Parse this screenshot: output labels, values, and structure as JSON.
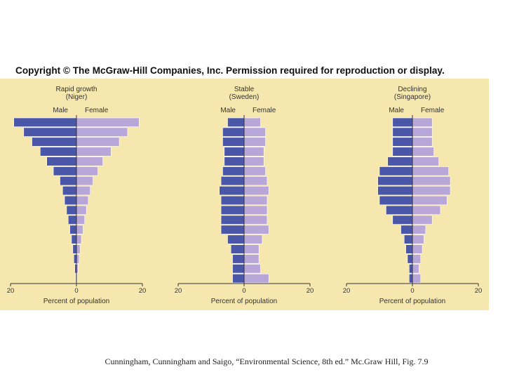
{
  "copyright": "Copyright © The McGraw-Hill Companies, Inc. Permission required for reproduction or display.",
  "citation": "Cunningham, Cunningham and Saigo, “Environmental Science, 8th ed.” Mc.Graw Hill, Fig. 7.9",
  "colors": {
    "panel": "#f5e7ae",
    "male": "#4a56a8",
    "female": "#b7a6d7"
  },
  "chart_data": [
    {
      "type": "bar",
      "title": "Rapid growth",
      "subtitle": "(Niger)",
      "male_label": "Male",
      "female_label": "Female",
      "xlabel": "Percent of population",
      "x_ticks": [
        "20",
        "0",
        "20"
      ],
      "xlim": [
        -20,
        20
      ],
      "series": [
        {
          "name": "Male",
          "values": [
            0.2,
            0.5,
            0.8,
            1.1,
            1.5,
            2,
            2.5,
            3,
            3.6,
            4.2,
            5,
            7,
            9,
            11,
            13.5,
            16,
            19
          ]
        },
        {
          "name": "Female",
          "values": [
            0.2,
            0.5,
            0.8,
            1.1,
            1.5,
            2,
            2.5,
            3,
            3.6,
            4.2,
            5,
            6.5,
            8,
            10.5,
            13,
            15.5,
            19
          ]
        }
      ]
    },
    {
      "type": "bar",
      "title": "Stable",
      "subtitle": "(Sweden)",
      "male_label": "Male",
      "female_label": "Female",
      "xlabel": "Percent of population",
      "x_ticks": [
        "20",
        "0",
        "20"
      ],
      "xlim": [
        -20,
        20
      ],
      "series": [
        {
          "name": "Male",
          "values": [
            3.5,
            3.5,
            3.5,
            4,
            5,
            7,
            7,
            7,
            7,
            7.5,
            7,
            6.5,
            6,
            6,
            6.5,
            6.5,
            5
          ]
        },
        {
          "name": "Female",
          "values": [
            7.5,
            5,
            4.5,
            4.5,
            5.5,
            7.5,
            7,
            7,
            7,
            7.5,
            7,
            6.5,
            6,
            6,
            6.5,
            6.5,
            5
          ]
        }
      ]
    },
    {
      "type": "bar",
      "title": "Declining",
      "subtitle": "(Singapore)",
      "male_label": "Male",
      "female_label": "Female",
      "xlabel": "Percent of population",
      "x_ticks": [
        "20",
        "0",
        "20"
      ],
      "xlim": [
        -20,
        20
      ],
      "series": [
        {
          "name": "Male",
          "values": [
            1,
            1,
            1.5,
            2,
            2.5,
            3.5,
            6,
            8,
            10,
            10.5,
            10.5,
            10,
            7.5,
            6,
            6,
            6,
            6
          ]
        },
        {
          "name": "Female",
          "values": [
            2.5,
            2,
            2.5,
            3,
            3.5,
            4,
            6,
            8.5,
            10.5,
            11.5,
            11.5,
            11,
            8,
            6.5,
            6,
            6,
            6
          ]
        }
      ]
    }
  ]
}
